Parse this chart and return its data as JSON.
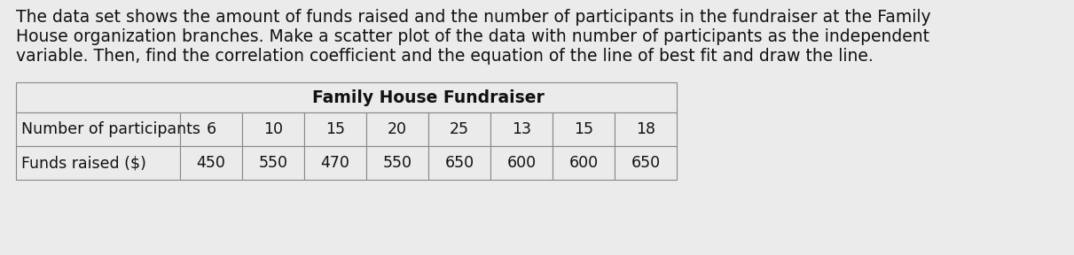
{
  "paragraph_text_lines": [
    "The data set shows the amount of funds raised and the number of participants in the fundraiser at the Family",
    "House organization branches. Make a scatter plot of the data with number of participants as the independent",
    "variable. Then, find the correlation coefficient and the equation of the line of best fit and draw the line."
  ],
  "table_title": "Family House Fundraiser",
  "row1_label": "Number of participants",
  "row2_label": "Funds raised ($)",
  "participants": [
    6,
    10,
    15,
    20,
    25,
    13,
    15,
    18
  ],
  "funds": [
    450,
    550,
    470,
    550,
    650,
    600,
    600,
    650
  ],
  "background_color": "#ebebeb",
  "text_color": "#111111",
  "font_size_paragraph": 13.5,
  "font_size_table": 12.5,
  "table_header_fontsize": 13.5
}
